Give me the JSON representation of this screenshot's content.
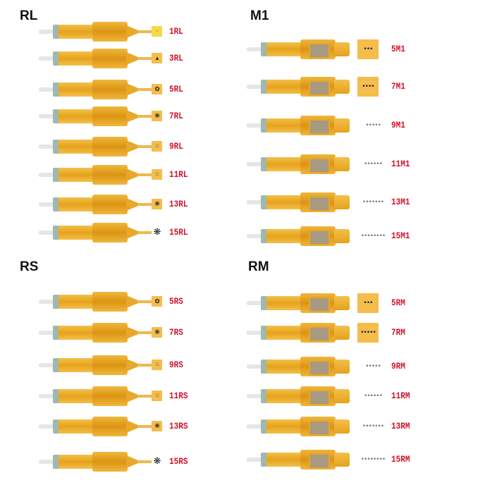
{
  "panels": [
    {
      "title": "RL",
      "style": "round",
      "items": [
        {
          "label": "1RL",
          "dots": "·"
        },
        {
          "label": "3RL",
          "dots": "▴"
        },
        {
          "label": "5RL",
          "dots": "✿"
        },
        {
          "label": "7RL",
          "dots": "❋"
        },
        {
          "label": "9RL",
          "dots": "⁙"
        },
        {
          "label": "11RL",
          "dots": "⁙"
        },
        {
          "label": "13RL",
          "dots": "❋"
        },
        {
          "label": "15RL",
          "dots": "❋"
        }
      ]
    },
    {
      "title": "M1",
      "style": "mag",
      "items": [
        {
          "label": "5M1",
          "dots": "•••"
        },
        {
          "label": "7M1",
          "dots": "••••"
        },
        {
          "label": "9M1",
          "dots": "•••••"
        },
        {
          "label": "11M1",
          "dots": "••••••"
        },
        {
          "label": "13M1",
          "dots": "•••••••"
        },
        {
          "label": "15M1",
          "dots": "••••••••"
        }
      ]
    },
    {
      "title": "RS",
      "style": "round",
      "items": [
        {
          "label": "5RS",
          "dots": "✿"
        },
        {
          "label": "7RS",
          "dots": "❋"
        },
        {
          "label": "9RS",
          "dots": "⁙"
        },
        {
          "label": "11RS",
          "dots": "⁙"
        },
        {
          "label": "13RS",
          "dots": "❋"
        },
        {
          "label": "15RS",
          "dots": "❋"
        }
      ]
    },
    {
      "title": "RM",
      "style": "mag",
      "items": [
        {
          "label": "5RM",
          "dots": "•••"
        },
        {
          "label": "7RM",
          "dots": "•••••"
        },
        {
          "label": "9RM",
          "dots": "•••••"
        },
        {
          "label": "11RM",
          "dots": "••••••"
        },
        {
          "label": "13RM",
          "dots": "•••••••"
        },
        {
          "label": "15RM",
          "dots": "••••••••"
        }
      ]
    }
  ],
  "colors": {
    "label": "#d0142a",
    "box": "#f4bd4c",
    "cartridge": "#e6a21c"
  }
}
